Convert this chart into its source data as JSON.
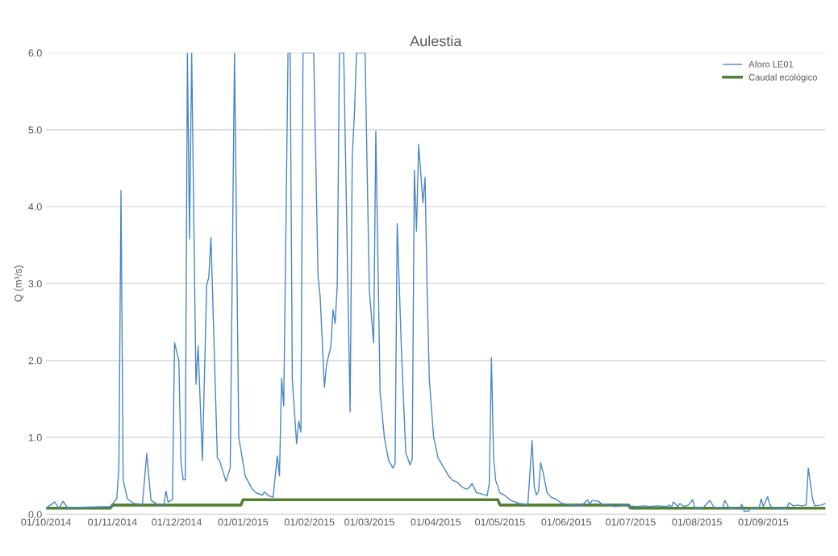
{
  "chart_data": {
    "type": "line",
    "title": "Aulestia",
    "ylabel": "Q (m³/s)",
    "xlim": [
      "2014-10-01",
      "2015-09-30"
    ],
    "xticks": [
      {
        "value": "2014-10-01",
        "label": "01/10/2014"
      },
      {
        "value": "2014-11-01",
        "label": "01/11/2014"
      },
      {
        "value": "2014-12-01",
        "label": "01/12/2014"
      },
      {
        "value": "2015-01-01",
        "label": "01/01/2015"
      },
      {
        "value": "2015-02-01",
        "label": "01/02/2015"
      },
      {
        "value": "2015-03-01",
        "label": "01/03/2015"
      },
      {
        "value": "2015-04-01",
        "label": "01/04/2015"
      },
      {
        "value": "2015-05-01",
        "label": "01/05/2015"
      },
      {
        "value": "2015-06-01",
        "label": "01/06/2015"
      },
      {
        "value": "2015-07-01",
        "label": "01/07/2015"
      },
      {
        "value": "2015-08-01",
        "label": "01/08/2015"
      },
      {
        "value": "2015-09-01",
        "label": "01/09/2015"
      }
    ],
    "ylim": [
      0,
      6
    ],
    "yticks": [
      {
        "value": 0,
        "label": "0.0"
      },
      {
        "value": 1,
        "label": "1.0"
      },
      {
        "value": 2,
        "label": "2.0"
      },
      {
        "value": 3,
        "label": "3.0"
      },
      {
        "value": 4,
        "label": "4.0"
      },
      {
        "value": 5,
        "label": "5.0"
      },
      {
        "value": 6,
        "label": "6.0"
      }
    ],
    "grid": "y",
    "legend": "top right",
    "marker": "none",
    "series": [
      {
        "name": "Aforo LE01",
        "color": "#4a86c5",
        "x": [
          "2014-10-01",
          "2014-10-05",
          "2014-10-07",
          "2014-10-09",
          "2014-10-11",
          "2014-10-17",
          "2014-10-31",
          "2014-11-03",
          "2014-11-04",
          "2014-11-05",
          "2014-11-06",
          "2014-11-08",
          "2014-11-11",
          "2014-11-15",
          "2014-11-17",
          "2014-11-19",
          "2014-11-22",
          "2014-11-25",
          "2014-11-26",
          "2014-11-27",
          "2014-11-29",
          "2014-11-30",
          "2014-12-02",
          "2014-12-03",
          "2014-12-04",
          "2014-12-05",
          "2014-12-06",
          "2014-12-07",
          "2014-12-08",
          "2014-12-10",
          "2014-12-11",
          "2014-12-13",
          "2014-12-15",
          "2014-12-16",
          "2014-12-17",
          "2014-12-20",
          "2014-12-21",
          "2014-12-24",
          "2014-12-26",
          "2014-12-28",
          "2014-12-30",
          "2015-01-02",
          "2015-01-05",
          "2015-01-07",
          "2015-01-10",
          "2015-01-11",
          "2015-01-13",
          "2015-01-15",
          "2015-01-17",
          "2015-01-18",
          "2015-01-19",
          "2015-01-20",
          "2015-01-22",
          "2015-01-23",
          "2015-01-24",
          "2015-01-26",
          "2015-01-27",
          "2015-01-28",
          "2015-01-29",
          "2015-02-03",
          "2015-02-05",
          "2015-02-06",
          "2015-02-08",
          "2015-02-09",
          "2015-02-11",
          "2015-02-12",
          "2015-02-13",
          "2015-02-14",
          "2015-02-15",
          "2015-02-17",
          "2015-02-20",
          "2015-02-21",
          "2015-02-22",
          "2015-02-23",
          "2015-02-27",
          "2015-02-28",
          "2015-03-01",
          "2015-03-03",
          "2015-03-04",
          "2015-03-06",
          "2015-03-08",
          "2015-03-10",
          "2015-03-12",
          "2015-03-13",
          "2015-03-14",
          "2015-03-16",
          "2015-03-18",
          "2015-03-20",
          "2015-03-21",
          "2015-03-22",
          "2015-03-23",
          "2015-03-24",
          "2015-03-26",
          "2015-03-27",
          "2015-03-28",
          "2015-03-29",
          "2015-03-31",
          "2015-04-01",
          "2015-04-02",
          "2015-04-07",
          "2015-04-09",
          "2015-04-11",
          "2015-04-13",
          "2015-04-15",
          "2015-04-16",
          "2015-04-18",
          "2015-04-20",
          "2015-04-22",
          "2015-04-25",
          "2015-04-26",
          "2015-04-27",
          "2015-04-28",
          "2015-04-29",
          "2015-05-01",
          "2015-05-04",
          "2015-05-06",
          "2015-05-10",
          "2015-05-14",
          "2015-05-16",
          "2015-05-17",
          "2015-05-18",
          "2015-05-19",
          "2015-05-20",
          "2015-05-21",
          "2015-05-23",
          "2015-05-25",
          "2015-05-27",
          "2015-05-30",
          "2015-06-08",
          "2015-06-11",
          "2015-06-12",
          "2015-06-13",
          "2015-06-16",
          "2015-06-18",
          "2015-06-19",
          "2015-06-22",
          "2015-06-24",
          "2015-06-28",
          "2015-06-30",
          "2015-07-04",
          "2015-07-07",
          "2015-07-10",
          "2015-07-13",
          "2015-07-18",
          "2015-07-19",
          "2015-07-20",
          "2015-07-21",
          "2015-07-23",
          "2015-07-24",
          "2015-07-26",
          "2015-07-28",
          "2015-07-30",
          "2015-07-31",
          "2015-08-04",
          "2015-08-07",
          "2015-08-09",
          "2015-08-13",
          "2015-08-14",
          "2015-08-16",
          "2015-08-21",
          "2015-08-22",
          "2015-08-23",
          "2015-08-25",
          "2015-08-26",
          "2015-08-30",
          "2015-08-31",
          "2015-09-01",
          "2015-09-03",
          "2015-09-04",
          "2015-09-05",
          "2015-09-12",
          "2015-09-13",
          "2015-09-15",
          "2015-09-17",
          "2015-09-19",
          "2015-09-21",
          "2015-09-22",
          "2015-09-24",
          "2015-09-25",
          "2015-09-28",
          "2015-09-30"
        ],
        "values": [
          0.08,
          0.16,
          0.08,
          0.17,
          0.08,
          0.09,
          0.1,
          0.2,
          0.6,
          4.21,
          0.44,
          0.2,
          0.14,
          0.13,
          0.79,
          0.18,
          0.13,
          0.12,
          0.3,
          0.16,
          0.19,
          2.23,
          2.0,
          0.68,
          0.45,
          0.45,
          6.0,
          3.58,
          6.0,
          1.69,
          2.19,
          0.7,
          2.98,
          3.08,
          3.6,
          0.73,
          0.7,
          0.43,
          0.6,
          6.0,
          1.0,
          0.5,
          0.34,
          0.28,
          0.25,
          0.29,
          0.24,
          0.22,
          0.76,
          0.5,
          1.77,
          1.41,
          6.0,
          6.0,
          1.75,
          0.92,
          1.21,
          1.07,
          6.0,
          6.0,
          3.1,
          2.83,
          1.65,
          1.95,
          2.18,
          2.66,
          2.48,
          2.98,
          6.0,
          6.0,
          1.33,
          4.65,
          5.2,
          6.0,
          6.0,
          4.4,
          2.9,
          2.23,
          4.98,
          1.59,
          1.0,
          0.7,
          0.6,
          0.66,
          3.78,
          2.1,
          0.8,
          0.64,
          0.72,
          4.47,
          3.68,
          4.81,
          4.05,
          4.38,
          2.9,
          1.75,
          1.0,
          0.88,
          0.74,
          0.5,
          0.44,
          0.42,
          0.36,
          0.33,
          0.33,
          0.4,
          0.28,
          0.27,
          0.24,
          0.4,
          2.04,
          0.74,
          0.44,
          0.28,
          0.23,
          0.18,
          0.14,
          0.13,
          0.96,
          0.36,
          0.25,
          0.3,
          0.67,
          0.56,
          0.28,
          0.22,
          0.2,
          0.14,
          0.11,
          0.19,
          0.13,
          0.18,
          0.17,
          0.12,
          0.13,
          0.11,
          0.1,
          0.12,
          0.11,
          0.1,
          0.11,
          0.1,
          0.11,
          0.1,
          0.12,
          0.09,
          0.16,
          0.1,
          0.14,
          0.1,
          0.12,
          0.19,
          0.08,
          0.09,
          0.18,
          0.09,
          0.09,
          0.18,
          0.08,
          0.08,
          0.13,
          0.04,
          0.04,
          0.08,
          0.08,
          0.2,
          0.1,
          0.23,
          0.13,
          0.08,
          0.08,
          0.15,
          0.11,
          0.12,
          0.11,
          0.12,
          0.6,
          0.2,
          0.11,
          0.12,
          0.14
        ]
      },
      {
        "name": "Caudal ecológico",
        "color": "#548235",
        "x": [
          "2014-10-01",
          "2014-10-31",
          "2014-11-01",
          "2014-12-31",
          "2015-01-01",
          "2015-04-30",
          "2015-05-01",
          "2015-06-30",
          "2015-07-01",
          "2015-09-30"
        ],
        "values": [
          0.08,
          0.08,
          0.12,
          0.12,
          0.19,
          0.19,
          0.12,
          0.12,
          0.08,
          0.08
        ]
      }
    ]
  }
}
